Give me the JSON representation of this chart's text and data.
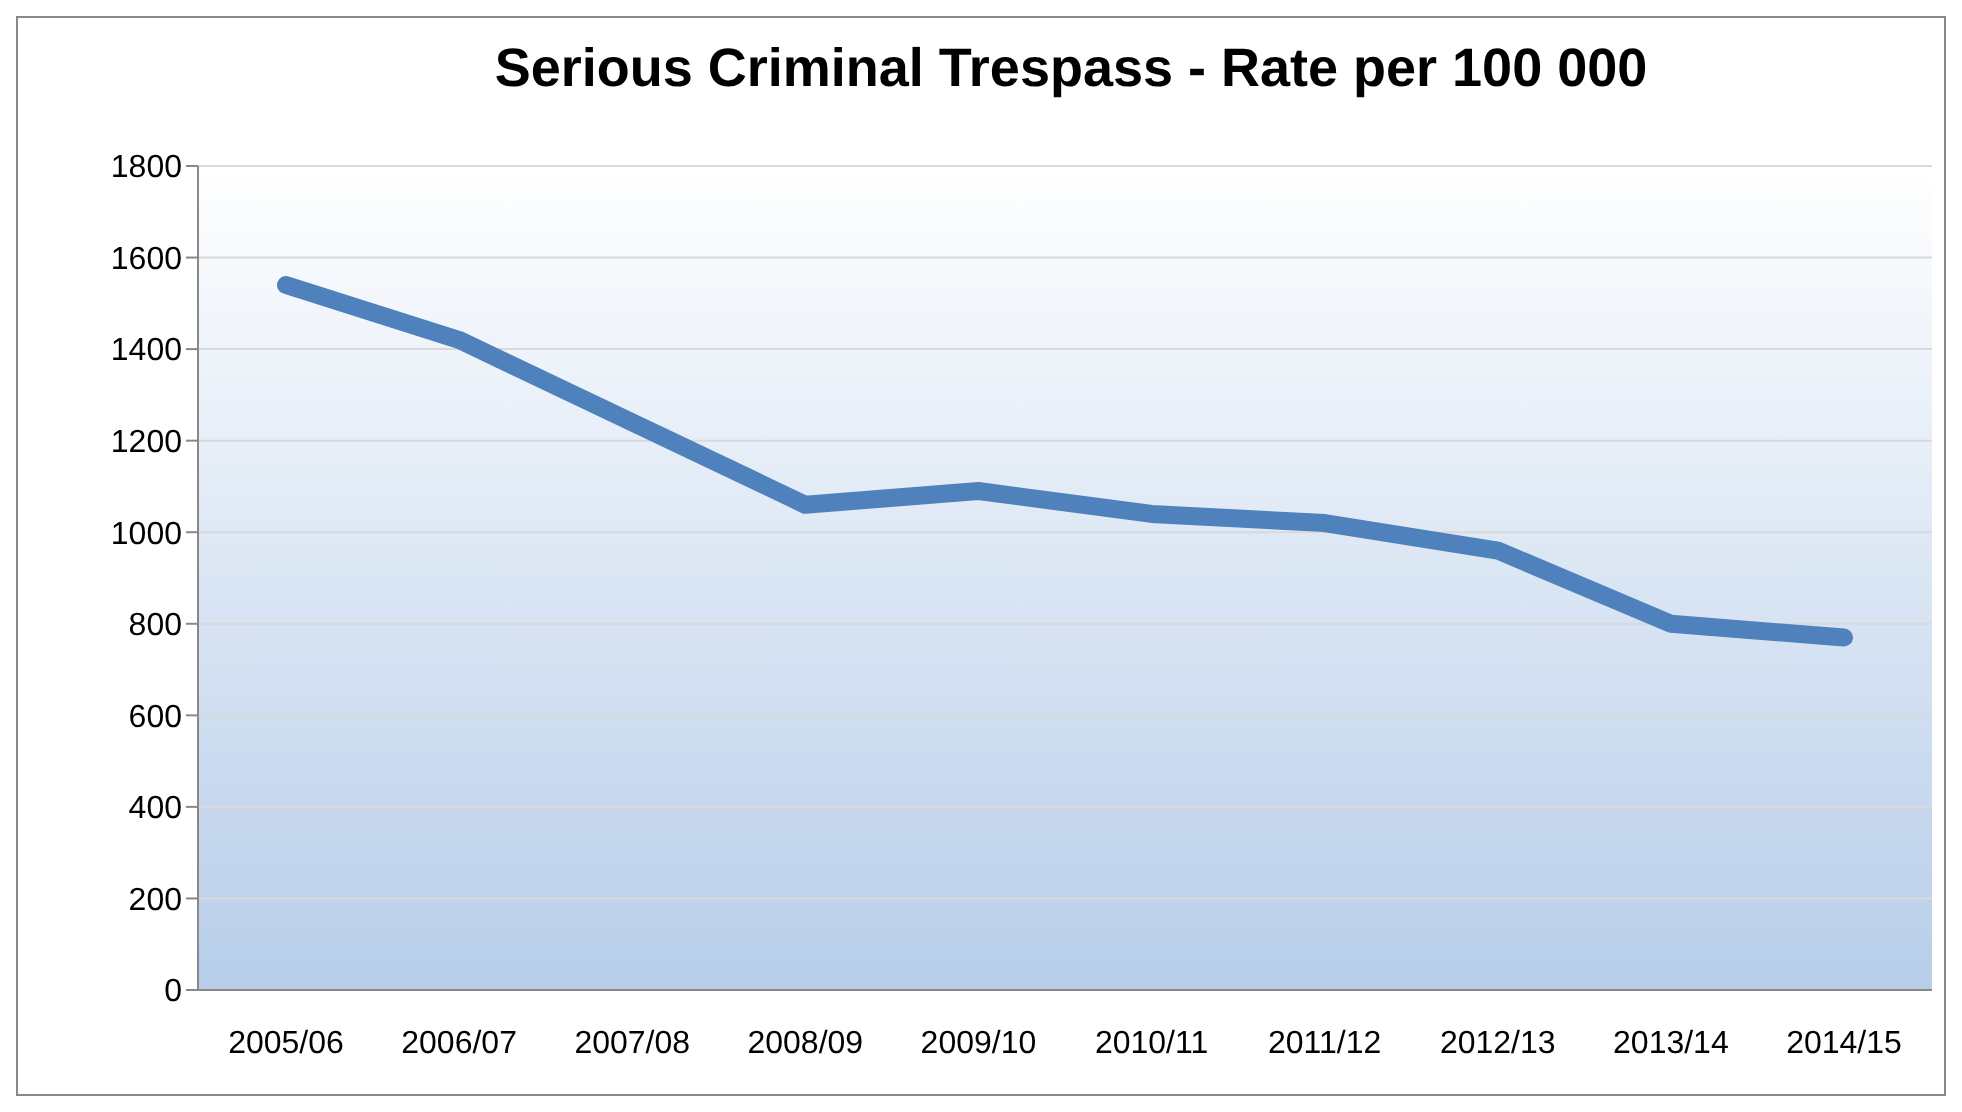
{
  "chart_data": {
    "type": "line",
    "title": "Serious Criminal Trespass - Rate per 100 000",
    "categories": [
      "2005/06",
      "2006/07",
      "2007/08",
      "2008/09",
      "2009/10",
      "2010/11",
      "2011/12",
      "2012/13",
      "2013/14",
      "2014/15"
    ],
    "series": [
      {
        "color": "#4f81bd",
        "values": [
          1540,
          1420,
          1240,
          1060,
          1090,
          1040,
          1020,
          960,
          800,
          770
        ]
      }
    ],
    "ylim": [
      0,
      1800
    ],
    "yticks": [
      0,
      200,
      400,
      600,
      800,
      1000,
      1200,
      1400,
      1600,
      1800
    ],
    "grid": "y",
    "legend": false,
    "marker": "none",
    "line_style": "solid"
  }
}
